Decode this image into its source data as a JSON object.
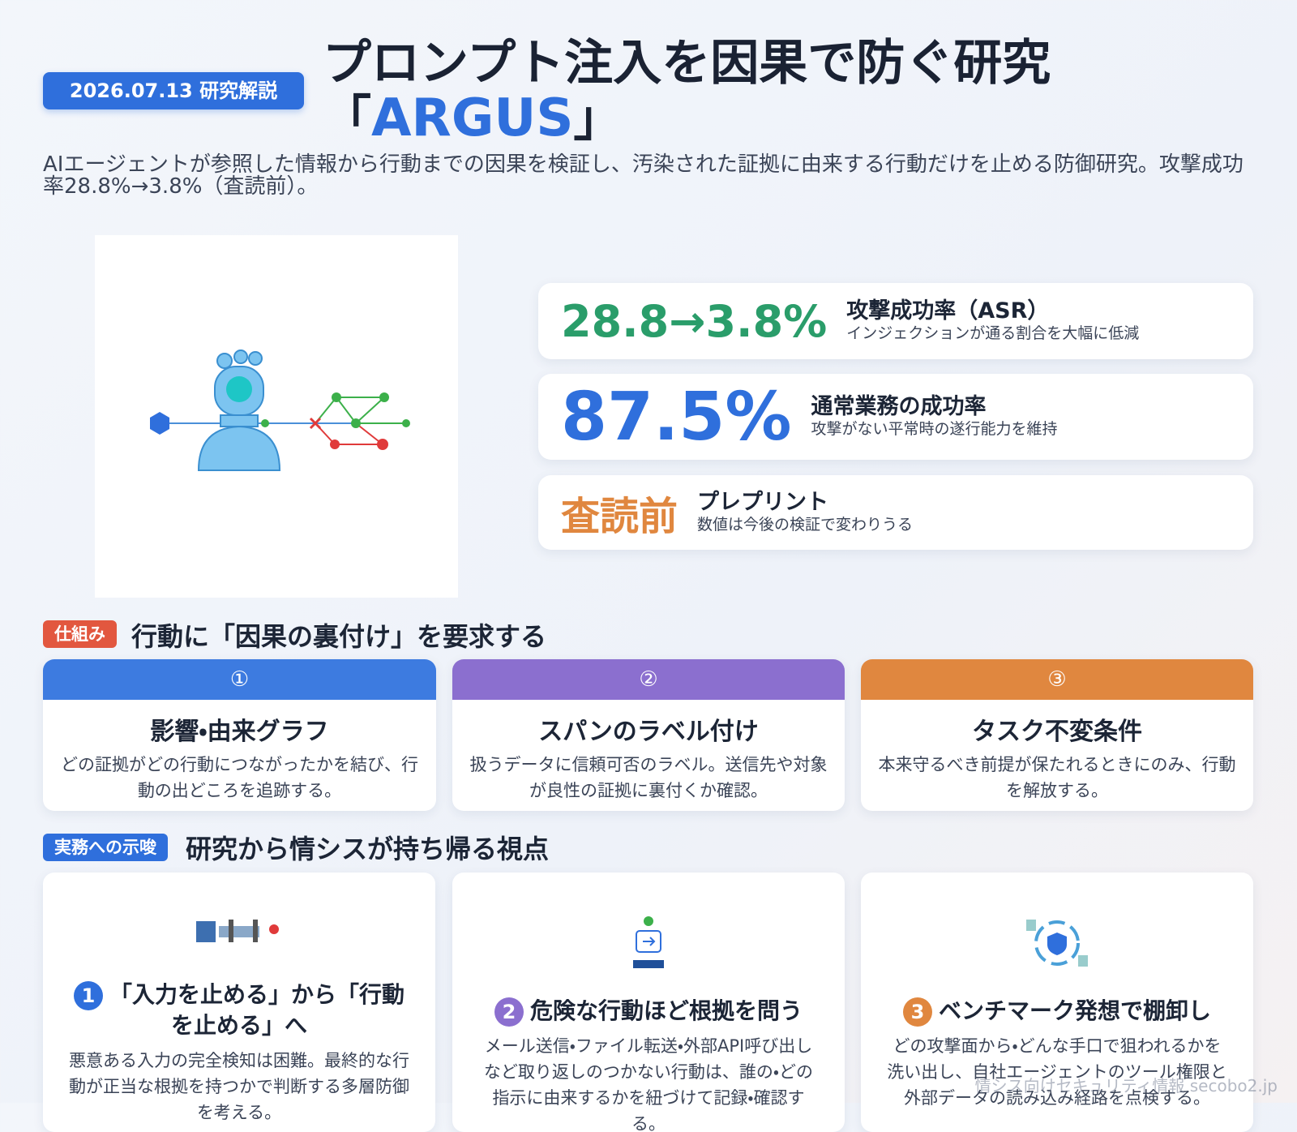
{
  "header": {
    "badge": "2026.07.13 研究解説",
    "title_line1": "プロンプト注入を因果で防ぐ研究",
    "bracket_open": "「",
    "highlight": "ARGUS",
    "bracket_close": "」",
    "lead": "AIエージェントが参照した情報から行動までの因果を検証し、汚染された証拠に由来する行動だけを止める防御研究。攻撃成功率28.8%→3.8%（査読前）。"
  },
  "stats": [
    {
      "value": "28.8→3.8%",
      "label": "攻撃成功率（ASR）",
      "sub": "インジェクションが通る割合を大幅に低減"
    },
    {
      "value": "87.5%",
      "label": "通常業務の成功率",
      "sub": "攻撃がない平常時の遂行能力を維持"
    },
    {
      "value": "査読前",
      "label": "プレプリント",
      "sub": "数値は今後の検証で変わりうる"
    }
  ],
  "mechanism": {
    "tag": "仕組み",
    "heading": "行動に「因果の裏付け」を要求する",
    "cards": [
      {
        "num": "①",
        "title": "影響・由来グラフ",
        "text": "どの証拠がどの行動につながったかを結び、行動の出どころを追跡する。"
      },
      {
        "num": "②",
        "title": "スパンのラベル付け",
        "text": "扱うデータに信頼可否のラベル。送信先や対象が良性の証拠に裏付くか確認。"
      },
      {
        "num": "③",
        "title": "タスク不変条件",
        "text": "本来守るべき前提が保たれるときにのみ、行動を解放する。"
      }
    ]
  },
  "implications": {
    "tag": "実務への示唆",
    "heading": "研究から情シスが持ち帰る視点",
    "cards": [
      {
        "num": "1",
        "title": "「入力を止める」から「行動を止める」へ",
        "text": "悪意ある入力の完全検知は困難。最終的な行動が正当な根拠を持つかで判断する多層防御を考える。"
      },
      {
        "num": "2",
        "title": "危険な行動ほど根拠を問う",
        "text": "メール送信・ファイル転送・外部API呼び出しなど取り返しのつかない行動は、誰の・どの指示に由来するかを紐づけて記録・確認する。"
      },
      {
        "num": "3",
        "title": "ベンチマーク発想で棚卸し",
        "text": "どの攻撃面から・どんな手口で狙われるかを洗い出し、自社エージェントのツール権限と外部データの読み込み経路を点検する。"
      }
    ]
  },
  "footer": {
    "watermark": "情シス向けセキュリティ情報 secobo2.jp"
  }
}
